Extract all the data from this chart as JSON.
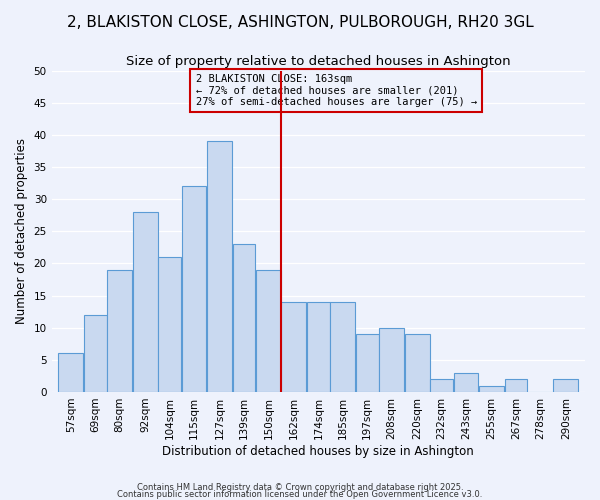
{
  "title": "2, BLAKISTON CLOSE, ASHINGTON, PULBOROUGH, RH20 3GL",
  "subtitle": "Size of property relative to detached houses in Ashington",
  "xlabel": "Distribution of detached houses by size in Ashington",
  "ylabel": "Number of detached properties",
  "footnote1": "Contains HM Land Registry data © Crown copyright and database right 2025.",
  "footnote2": "Contains public sector information licensed under the Open Government Licence v3.0.",
  "bar_labels": [
    "57sqm",
    "69sqm",
    "80sqm",
    "92sqm",
    "104sqm",
    "115sqm",
    "127sqm",
    "139sqm",
    "150sqm",
    "162sqm",
    "174sqm",
    "185sqm",
    "197sqm",
    "208sqm",
    "220sqm",
    "232sqm",
    "243sqm",
    "255sqm",
    "267sqm",
    "278sqm",
    "290sqm"
  ],
  "bar_values": [
    6,
    12,
    19,
    28,
    21,
    32,
    39,
    23,
    19,
    14,
    14,
    14,
    9,
    10,
    9,
    2,
    3,
    1,
    2,
    0,
    2
  ],
  "bar_left_edges": [
    57,
    69,
    80,
    92,
    104,
    115,
    127,
    139,
    150,
    162,
    174,
    185,
    197,
    208,
    220,
    232,
    243,
    255,
    267,
    278,
    290
  ],
  "bar_widths": [
    12,
    11,
    12,
    12,
    11,
    12,
    12,
    11,
    12,
    12,
    11,
    12,
    11,
    12,
    12,
    11,
    12,
    12,
    11,
    12,
    12
  ],
  "bar_color": "#c9d9f0",
  "bar_edge_color": "#5b9bd5",
  "vline_x": 162,
  "vline_color": "#cc0000",
  "ylim": [
    0,
    50
  ],
  "yticks": [
    0,
    5,
    10,
    15,
    20,
    25,
    30,
    35,
    40,
    45,
    50
  ],
  "annotation_title": "2 BLAKISTON CLOSE: 163sqm",
  "annotation_line1": "← 72% of detached houses are smaller (201)",
  "annotation_line2": "27% of semi-detached houses are larger (75) →",
  "annotation_box_color": "#cc0000",
  "bg_color": "#eef2fc",
  "grid_color": "#ffffff",
  "title_fontsize": 11,
  "subtitle_fontsize": 9.5,
  "tick_fontsize": 7.5,
  "label_fontsize": 8.5,
  "annotation_fontsize": 7.5
}
